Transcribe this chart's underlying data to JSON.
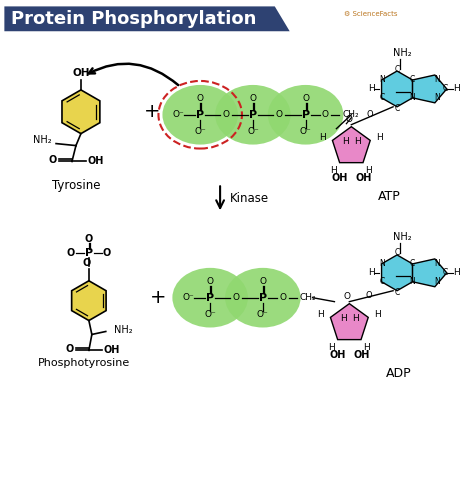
{
  "title": "Protein Phosphorylation",
  "title_bg": "#2e4272",
  "title_color": "#ffffff",
  "bg_color": "#ffffff",
  "yellow_color": "#e8d44d",
  "green_color": "#90d870",
  "pink_color": "#e888c8",
  "cyan_color": "#60cce0",
  "red_dashed_color": "#cc2222",
  "sciencefacts_color": "#bb7722",
  "top_label": "Tyrosine",
  "bottom_left_label": "Phosphotyrosine",
  "atp_label": "ATP",
  "adp_label": "ADP",
  "kinase_label": "Kinase",
  "fig_w": 4.74,
  "fig_h": 4.86,
  "dpi": 100
}
